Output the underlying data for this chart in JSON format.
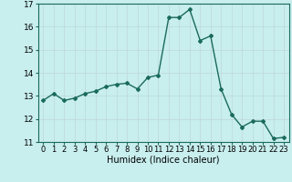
{
  "x": [
    0,
    1,
    2,
    3,
    4,
    5,
    6,
    7,
    8,
    9,
    10,
    11,
    12,
    13,
    14,
    15,
    16,
    17,
    18,
    19,
    20,
    21,
    22,
    23
  ],
  "y": [
    12.8,
    13.1,
    12.8,
    12.9,
    13.1,
    13.2,
    13.4,
    13.5,
    13.55,
    13.3,
    13.8,
    13.9,
    16.4,
    16.4,
    16.75,
    15.4,
    15.6,
    13.3,
    12.2,
    11.65,
    11.9,
    11.9,
    11.15,
    11.2
  ],
  "xlabel": "Humidex (Indice chaleur)",
  "ylim": [
    11,
    17
  ],
  "xlim": [
    -0.5,
    23.5
  ],
  "yticks": [
    11,
    12,
    13,
    14,
    15,
    16,
    17
  ],
  "xticks": [
    0,
    1,
    2,
    3,
    4,
    5,
    6,
    7,
    8,
    9,
    10,
    11,
    12,
    13,
    14,
    15,
    16,
    17,
    18,
    19,
    20,
    21,
    22,
    23
  ],
  "line_color": "#1a6b5a",
  "bg_color": "#c8eeee",
  "grid_color": "#c0d8d8",
  "marker": "D",
  "marker_size": 2.0,
  "line_width": 1.0,
  "xlabel_fontsize": 7,
  "tick_fontsize": 6,
  "ytick_fontsize": 6.5
}
